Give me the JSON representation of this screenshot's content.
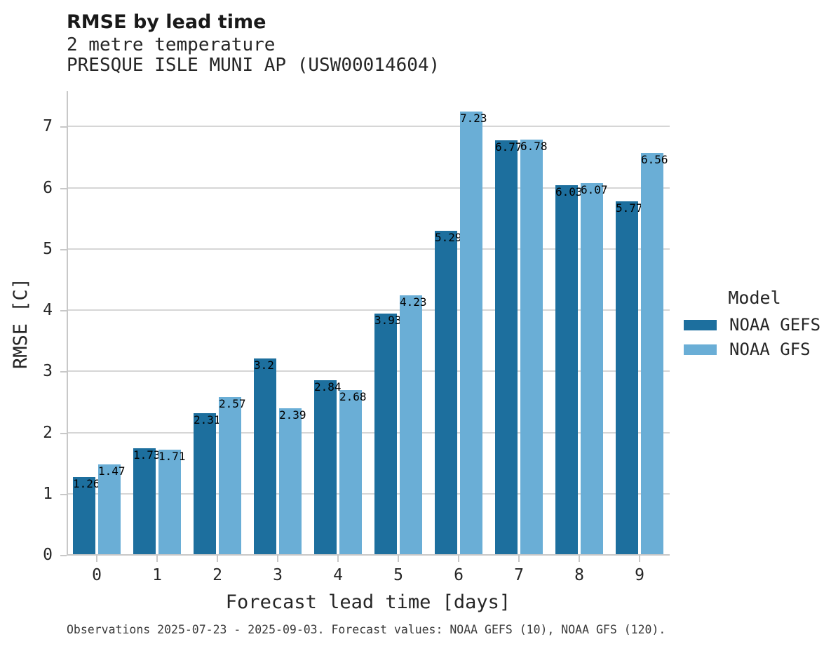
{
  "header": {
    "title": "RMSE by lead time",
    "subtitle_line1": "2 metre temperature",
    "subtitle_line2": "PRESQUE ISLE MUNI AP (USW00014604)"
  },
  "legend": {
    "title": "Model",
    "entries": [
      {
        "label": "NOAA GEFS",
        "color": "#1d6f9e"
      },
      {
        "label": "NOAA GFS",
        "color": "#6aaed6"
      }
    ]
  },
  "footer": {
    "note": "Observations 2025-07-23 - 2025-09-03. Forecast values: NOAA GEFS (10), NOAA GFS (120)."
  },
  "colors": {
    "gefs_dark_blue": "#1d6f9e",
    "gfs_light_blue": "#6aaed6",
    "gridline": "#d6d6d6",
    "spine": "#c8c8c8",
    "tick_text": "#262626",
    "title_text": "#191919",
    "footnote_text": "#3a3a3a"
  },
  "chart_data": {
    "type": "bar",
    "title": "RMSE by lead time",
    "subtitle": [
      "2 metre temperature",
      "PRESQUE ISLE MUNI AP (USW00014604)"
    ],
    "xlabel": "Forecast lead time [days]",
    "ylabel": "RMSE [C]",
    "categories": [
      "0",
      "1",
      "2",
      "3",
      "4",
      "5",
      "6",
      "7",
      "8",
      "9"
    ],
    "series": [
      {
        "name": "NOAA GEFS",
        "color": "#1d6f9e",
        "values": [
          1.26,
          1.73,
          2.31,
          3.2,
          2.84,
          3.93,
          5.29,
          6.77,
          6.03,
          5.77
        ]
      },
      {
        "name": "NOAA GFS",
        "color": "#6aaed6",
        "values": [
          1.47,
          1.71,
          2.57,
          2.39,
          2.68,
          4.23,
          7.23,
          6.78,
          6.07,
          6.56
        ]
      }
    ],
    "yticks": [
      0,
      1,
      2,
      3,
      4,
      5,
      6,
      7
    ],
    "ylim": [
      0,
      7.59
    ],
    "grid": "horizontal",
    "legend_title": "Model",
    "legend_position": "right"
  }
}
